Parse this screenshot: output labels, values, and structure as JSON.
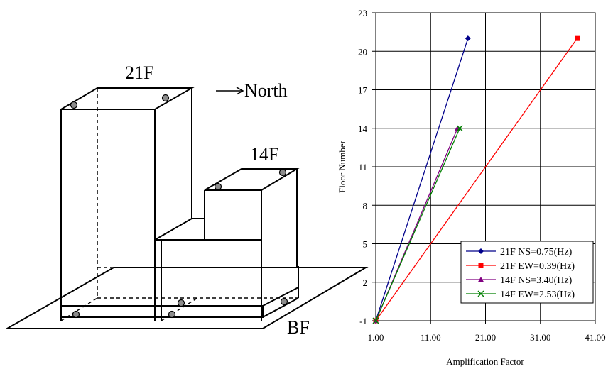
{
  "building": {
    "label_21f": "21F",
    "label_14f": "14F",
    "label_bf": "BF",
    "north_label": "North"
  },
  "chart_data": {
    "type": "line",
    "xlabel": "Amplification Factor",
    "ylabel": "Floor Number",
    "xlim": [
      1.0,
      41.0
    ],
    "ylim": [
      -1,
      23
    ],
    "x_ticks": [
      "1.00",
      "11.00",
      "21.00",
      "31.00",
      "41.00"
    ],
    "y_ticks": [
      "-1",
      "2",
      "5",
      "8",
      "11",
      "14",
      "17",
      "20",
      "23"
    ],
    "grid": true,
    "legend_position": "bottom-right",
    "series": [
      {
        "name": "21F NS=0.75(Hz)",
        "color": "#00008b",
        "marker": "diamond",
        "points": [
          [
            1.0,
            -1
          ],
          [
            17.8,
            21
          ]
        ]
      },
      {
        "name": "21F EW=0.39(Hz)",
        "color": "#ff0000",
        "marker": "square",
        "points": [
          [
            1.0,
            -1
          ],
          [
            37.7,
            21
          ]
        ]
      },
      {
        "name": "14F NS=3.40(Hz)",
        "color": "#800080",
        "marker": "triangle",
        "points": [
          [
            1.0,
            -1
          ],
          [
            15.9,
            14
          ]
        ]
      },
      {
        "name": "14F EW=2.53(Hz)",
        "color": "#008000",
        "marker": "x",
        "points": [
          [
            1.0,
            -1
          ],
          [
            16.3,
            14
          ]
        ]
      }
    ]
  }
}
